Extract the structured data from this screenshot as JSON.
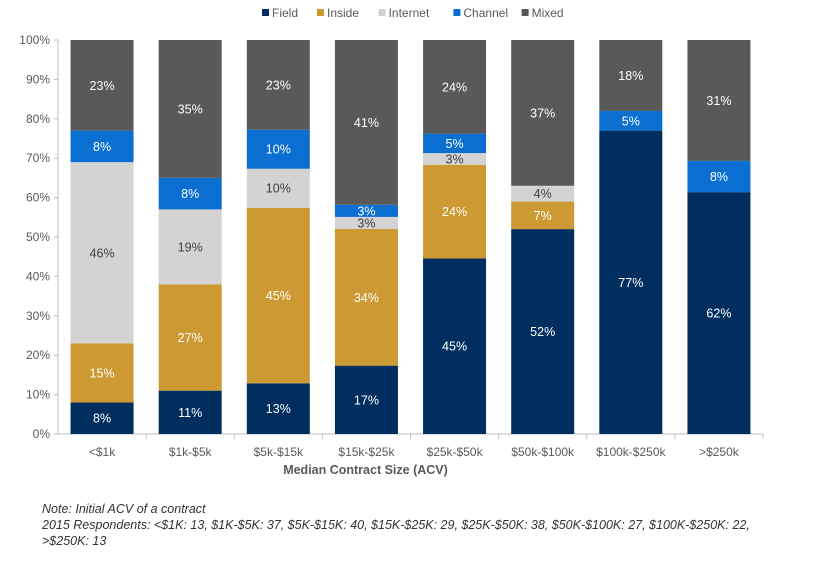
{
  "chart_data": {
    "type": "bar",
    "stacked": true,
    "title": "",
    "xlabel": "Median Contract Size (ACV)",
    "ylabel": "",
    "ylim": [
      0,
      100
    ],
    "yticks": [
      "0%",
      "10%",
      "20%",
      "30%",
      "40%",
      "50%",
      "60%",
      "70%",
      "80%",
      "90%",
      "100%"
    ],
    "legend_position": "top",
    "categories": [
      "<$1k",
      "$1k-$5k",
      "$5k-$15k",
      "$15k-$25k",
      "$25k-$50k",
      "$50k-$100k",
      "$100k-$250k",
      ">$250k"
    ],
    "series": [
      {
        "name": "Field",
        "color": "#002f5f",
        "label_color": "#ffffff",
        "values": [
          8,
          11,
          13,
          17,
          45,
          52,
          77,
          62
        ]
      },
      {
        "name": "Inside",
        "color": "#cc9933",
        "label_color": "#ffffff",
        "values": [
          15,
          27,
          45,
          34,
          24,
          7,
          0,
          0
        ]
      },
      {
        "name": "Internet",
        "color": "#d3d3d3",
        "label_color": "#404040",
        "values": [
          46,
          19,
          10,
          3,
          3,
          4,
          0,
          0
        ]
      },
      {
        "name": "Channel",
        "color": "#0a6fd1",
        "label_color": "#ffffff",
        "values": [
          8,
          8,
          10,
          3,
          5,
          0,
          5,
          8
        ]
      },
      {
        "name": "Mixed",
        "color": "#595959",
        "label_color": "#ffffff",
        "values": [
          23,
          35,
          23,
          41,
          24,
          37,
          18,
          31
        ]
      }
    ]
  },
  "notes": {
    "line1": "Note: Initial ACV of a contract",
    "line2": "2015 Respondents: <$1K: 13, $1K-$5K: 37, $5K-$15K: 40, $15K-$25K: 29, $25K-$50K: 38, $50K-$100K: 27, $100K-$250K: 22,",
    "line3": ">$250K: 13"
  }
}
